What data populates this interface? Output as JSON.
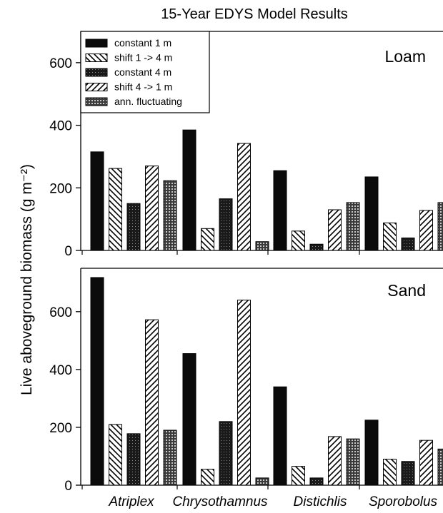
{
  "chart_data": {
    "type": "bar",
    "title": "15-Year EDYS Model Results",
    "ylabel": "Live aboveground biomass (g m⁻²)",
    "xlabel": "",
    "categories": [
      "Atriplex",
      "Chrysothamnus",
      "Distichlis",
      "Sporobolus"
    ],
    "legend": {
      "placement": "top-left (Loam panel)",
      "entries": [
        "constant 1 m",
        "shift 1 -> 4 m",
        "constant 4 m",
        "shift 4 -> 1 m",
        "ann. fluctuating"
      ]
    },
    "series_styles": [
      {
        "fill": "#0b0b0b",
        "pattern": "solid"
      },
      {
        "fill": "#ffffff",
        "pattern": "back-diagonal hatch"
      },
      {
        "fill": "#262626",
        "pattern": "dark crosshatch"
      },
      {
        "fill": "#ffffff",
        "pattern": "forward-diagonal hatch"
      },
      {
        "fill": "#6a6a6a",
        "pattern": "dotted crosshatch"
      }
    ],
    "panels": [
      {
        "label": "Loam",
        "ylim": [
          0,
          700
        ],
        "yticks": [
          0,
          200,
          400,
          600
        ],
        "series": [
          {
            "values": [
              315,
              385,
              255,
              235
            ]
          },
          {
            "values": [
              262,
              70,
              62,
              88
            ]
          },
          {
            "values": [
              150,
              165,
              20,
              40
            ]
          },
          {
            "values": [
              270,
              342,
              130,
              128
            ]
          },
          {
            "values": [
              223,
              28,
              153,
              153
            ]
          }
        ]
      },
      {
        "label": "Sand",
        "ylim": [
          0,
          750
        ],
        "yticks": [
          0,
          200,
          400,
          600
        ],
        "series": [
          {
            "values": [
              718,
              455,
              340,
              225
            ]
          },
          {
            "values": [
              210,
              55,
              65,
              90
            ]
          },
          {
            "values": [
              178,
              220,
              25,
              82
            ]
          },
          {
            "values": [
              572,
              640,
              168,
              155
            ]
          },
          {
            "values": [
              190,
              25,
              160,
              125
            ]
          }
        ]
      }
    ]
  }
}
